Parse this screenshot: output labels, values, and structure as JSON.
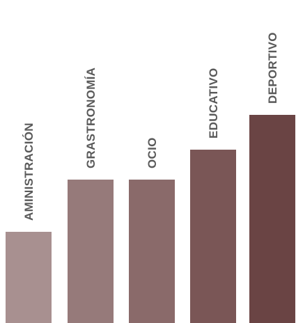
{
  "chart_data": {
    "type": "bar",
    "title": "",
    "xlabel": "",
    "ylabel": "",
    "categories": [
      "AMINISTRACIÓN",
      "GRASTRONOMÍA",
      "OCIO",
      "EDUCATIVO",
      "DEPORTIVO"
    ],
    "values": [
      21,
      33,
      33,
      40,
      48
    ],
    "ylim": [
      0,
      48
    ],
    "grid": false,
    "legend": "none",
    "colors": [
      "#a89090",
      "#967a7a",
      "#8a6a6a",
      "#7a5656",
      "#6a4444"
    ]
  }
}
